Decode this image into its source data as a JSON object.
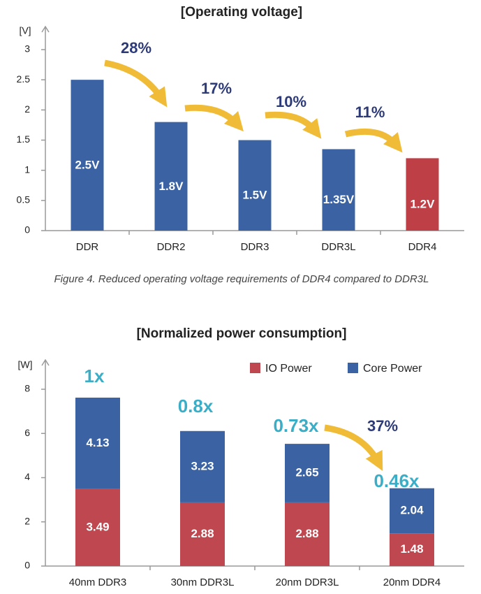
{
  "chart_data": [
    {
      "type": "bar",
      "title": "[Operating voltage]",
      "y_unit": "[V]",
      "categories": [
        "DDR",
        "DDR2",
        "DDR3",
        "DDR3L",
        "DDR4"
      ],
      "values": [
        2.5,
        1.8,
        1.5,
        1.35,
        1.2
      ],
      "value_labels": [
        "2.5V",
        "1.8V",
        "1.5V",
        "1.35V",
        "1.2V"
      ],
      "colors": [
        "#3b63a3",
        "#3b63a3",
        "#3b63a3",
        "#3b63a3",
        "#bf3f47"
      ],
      "ylim": [
        0,
        3
      ],
      "yticks": [
        0,
        0.5,
        1,
        1.5,
        2,
        2.5,
        3
      ],
      "annotations": [
        "28%",
        "17%",
        "10%",
        "11%"
      ]
    },
    {
      "type": "stacked_bar",
      "title": "[Normalized power consumption]",
      "y_unit": "[W]",
      "categories": [
        "40nm DDR3",
        "30nm DDR3L",
        "20nm DDR3L",
        "20nm DDR4"
      ],
      "series": [
        {
          "name": "IO Power",
          "color": "#bf4850",
          "values": [
            3.49,
            2.88,
            2.88,
            1.48
          ]
        },
        {
          "name": "Core Power",
          "color": "#3b63a3",
          "values": [
            4.13,
            3.23,
            2.65,
            2.04
          ]
        }
      ],
      "ylim": [
        0,
        8
      ],
      "yticks": [
        0,
        2,
        4,
        6,
        8
      ],
      "annotations": [
        "1x",
        "0.8x",
        "0.73x",
        "0.46x",
        "37%"
      ]
    }
  ],
  "caption": "Figure 4. Reduced operating voltage requirements of DDR4 compared to DDR3L"
}
